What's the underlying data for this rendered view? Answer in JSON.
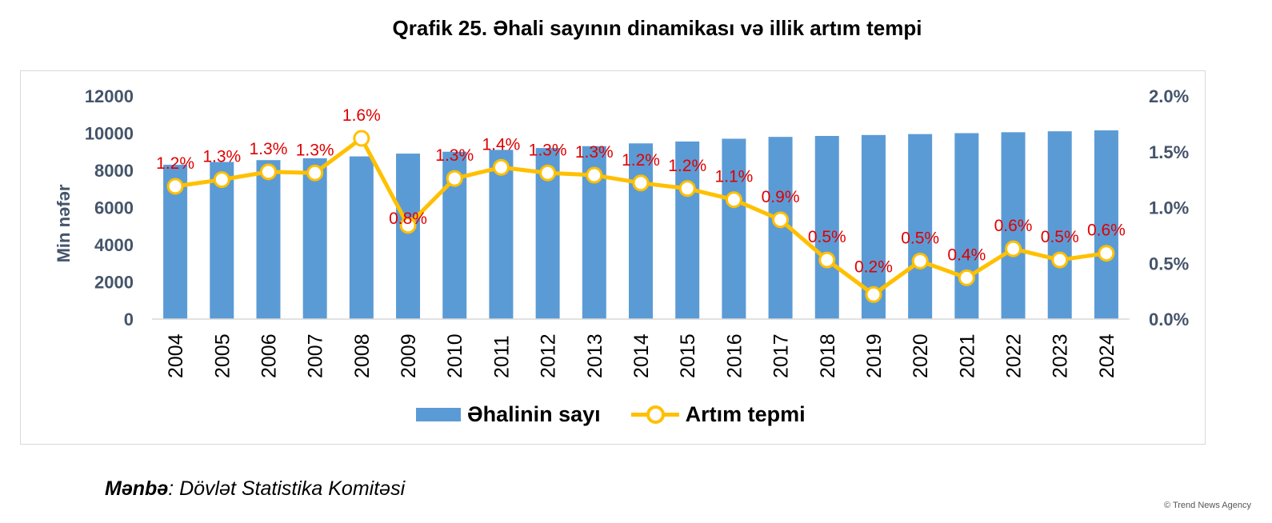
{
  "title": "Qrafik 25. Əhali sayının dinamikası və illik artım tempi",
  "source": {
    "label": "Mənbə",
    "text": ": Dövlət Statistika Komitəsi"
  },
  "watermark": "© Trend News Agency",
  "colors": {
    "bar": "#5b9bd5",
    "line": "#ffc000",
    "data_label": "#e00000",
    "axis_text": "#44546a"
  },
  "chart_data": {
    "type": "bar+line",
    "categories": [
      "2004",
      "2005",
      "2006",
      "2007",
      "2008",
      "2009",
      "2010",
      "2011",
      "2012",
      "2013",
      "2014",
      "2015",
      "2016",
      "2017",
      "2018",
      "2019",
      "2020",
      "2021",
      "2022",
      "2023",
      "2024"
    ],
    "series": [
      {
        "name": "Əhalinin sayı",
        "type": "bar",
        "axis": "left",
        "values": [
          8300,
          8450,
          8550,
          8650,
          8750,
          8900,
          9000,
          9100,
          9200,
          9300,
          9450,
          9550,
          9700,
          9800,
          9850,
          9900,
          9950,
          10000,
          10050,
          10100,
          10150
        ]
      },
      {
        "name": "Artım tepmi",
        "type": "line",
        "axis": "right",
        "values": [
          1.19,
          1.25,
          1.32,
          1.31,
          1.62,
          0.84,
          1.26,
          1.36,
          1.31,
          1.29,
          1.22,
          1.17,
          1.07,
          0.89,
          0.53,
          0.22,
          0.52,
          0.37,
          0.63,
          0.53,
          0.59
        ],
        "data_labels": [
          "1.2%",
          "1.3%",
          "1.3%",
          "1.3%",
          "1.6%",
          "0.8%",
          "1.3%",
          "1.4%",
          "1.3%",
          "1.3%",
          "1.2%",
          "1.2%",
          "1.1%",
          "0.9%",
          "0.5%",
          "0.2%",
          "0.5%",
          "0.4%",
          "0.6%",
          "0.5%",
          "0.6%"
        ]
      }
    ],
    "y_left": {
      "label": "Min nəfər",
      "min": 0,
      "max": 12000,
      "ticks": [
        "0",
        "2000",
        "4000",
        "6000",
        "8000",
        "10000",
        "12000"
      ]
    },
    "y_right": {
      "label": "",
      "min": 0,
      "max": 2.0,
      "ticks": [
        "0.0%",
        "0.5%",
        "1.0%",
        "1.5%",
        "2.0%"
      ]
    },
    "legend": {
      "position": "bottom",
      "entries": [
        "Əhalinin sayı",
        "Artım tepmi"
      ]
    },
    "grid": false
  }
}
